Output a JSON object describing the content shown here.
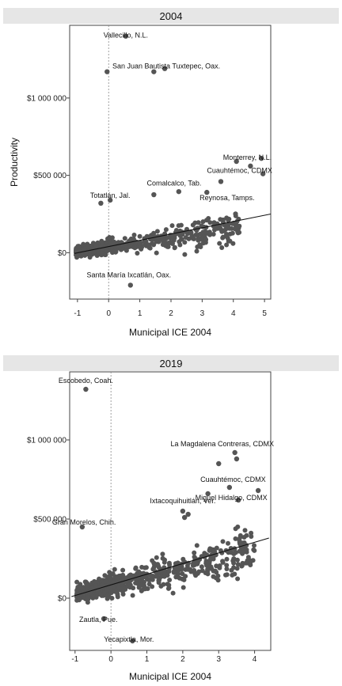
{
  "chart_data": [
    {
      "type": "scatter",
      "title": "2004",
      "xlabel": "Municipal ICE  2004",
      "ylabel": "Productivity",
      "xlim": [
        -1.25,
        5.2
      ],
      "ylim": [
        -300000,
        1470000
      ],
      "xticks": [
        -1,
        0,
        1,
        2,
        3,
        4,
        5
      ],
      "yticks": [
        0,
        500000,
        1000000
      ],
      "ytick_labels": [
        "$0",
        "$500 000",
        "$1 000 000"
      ],
      "grid": false,
      "zero_line_x": 0,
      "trend": {
        "x": [
          -1.1,
          5.2
        ],
        "y": [
          -5000,
          250000
        ]
      },
      "colors": {
        "points": "#555555",
        "line": "#111111",
        "header": "#e6e6e6"
      },
      "annotations": [
        {
          "text": "Vallecillo, N.L.",
          "x": 0.55,
          "y": 1390000
        },
        {
          "text": "San Juan Bautista Tuxtepec, Oax.",
          "x": 1.85,
          "y": 1190000
        },
        {
          "text": "Monterrey, N.L.",
          "x": 4.45,
          "y": 600000
        },
        {
          "text": "Cuauhtémoc, CDMX",
          "x": 4.2,
          "y": 515000
        },
        {
          "text": "Comalcalco, Tab.",
          "x": 2.1,
          "y": 435000
        },
        {
          "text": "Totatlán, Jal.",
          "x": 0.05,
          "y": 355000
        },
        {
          "text": "Reynosa, Tamps.",
          "x": 3.8,
          "y": 340000
        },
        {
          "text": "Santa María Ixcatlán, Oax.",
          "x": 0.65,
          "y": -160000
        }
      ],
      "highlighted_points": [
        {
          "x": 0.55,
          "y": 1400000
        },
        {
          "x": -0.05,
          "y": 1170000
        },
        {
          "x": 1.45,
          "y": 1170000
        },
        {
          "x": 1.8,
          "y": 1190000
        },
        {
          "x": 4.9,
          "y": 610000
        },
        {
          "x": 4.95,
          "y": 510000
        },
        {
          "x": 4.1,
          "y": 590000
        },
        {
          "x": 4.55,
          "y": 560000
        },
        {
          "x": 3.6,
          "y": 460000
        },
        {
          "x": 3.15,
          "y": 390000
        },
        {
          "x": 2.25,
          "y": 395000
        },
        {
          "x": 1.45,
          "y": 375000
        },
        {
          "x": 0.05,
          "y": 340000
        },
        {
          "x": -0.25,
          "y": 320000
        },
        {
          "x": 0.7,
          "y": -210000
        }
      ],
      "cloud": {
        "seed": 7,
        "count": 620,
        "x_min": -1.05,
        "x_max": 4.2,
        "intercept": 35000,
        "slope": 30000,
        "spread": 42000
      }
    },
    {
      "type": "scatter",
      "title": "2019",
      "xlabel": "Municipal ICE  2004",
      "ylabel": "",
      "xlim": [
        -1.15,
        4.45
      ],
      "ylim": [
        -330000,
        1430000
      ],
      "xticks": [
        -1,
        0,
        1,
        2,
        3,
        4
      ],
      "yticks": [
        0,
        500000,
        1000000
      ],
      "ytick_labels": [
        "$0",
        "$500 000",
        "$1 000 000"
      ],
      "grid": false,
      "zero_line_x": 0,
      "trend": {
        "x": [
          -1.1,
          4.4
        ],
        "y": [
          10000,
          380000
        ]
      },
      "colors": {
        "points": "#555555",
        "line": "#111111",
        "header": "#e6e6e6"
      },
      "annotations": [
        {
          "text": "Escobedo, Coah.",
          "x": -0.7,
          "y": 1360000
        },
        {
          "text": "La Magdalena Contreras, CDMX",
          "x": 3.1,
          "y": 960000
        },
        {
          "text": "Cuauhtémoc, CDMX",
          "x": 3.4,
          "y": 735000
        },
        {
          "text": "Miguel Hidalgo, CDMX",
          "x": 3.35,
          "y": 620000
        },
        {
          "text": "Ixtacoquihuitlán, Ver.",
          "x": 2.0,
          "y": 600000
        },
        {
          "text": "Gran Morelos, Chih.",
          "x": -0.75,
          "y": 465000
        },
        {
          "text": "Zautla, Pue.",
          "x": -0.35,
          "y": -150000
        },
        {
          "text": "Yecapixtla, Mor.",
          "x": 0.5,
          "y": -275000
        }
      ],
      "highlighted_points": [
        {
          "x": -0.7,
          "y": 1320000
        },
        {
          "x": 3.45,
          "y": 920000
        },
        {
          "x": 3.5,
          "y": 880000
        },
        {
          "x": 3.0,
          "y": 850000
        },
        {
          "x": 3.3,
          "y": 700000
        },
        {
          "x": 4.1,
          "y": 680000
        },
        {
          "x": 3.55,
          "y": 620000
        },
        {
          "x": 2.7,
          "y": 660000
        },
        {
          "x": 2.0,
          "y": 550000
        },
        {
          "x": 2.15,
          "y": 530000
        },
        {
          "x": 2.05,
          "y": 510000
        },
        {
          "x": -0.8,
          "y": 450000
        },
        {
          "x": -0.2,
          "y": -130000
        },
        {
          "x": 0.6,
          "y": -270000
        }
      ],
      "cloud": {
        "seed": 13,
        "count": 780,
        "x_min": -0.95,
        "x_max": 4.0,
        "intercept": 80000,
        "slope": 55000,
        "spread": 65000
      }
    }
  ]
}
